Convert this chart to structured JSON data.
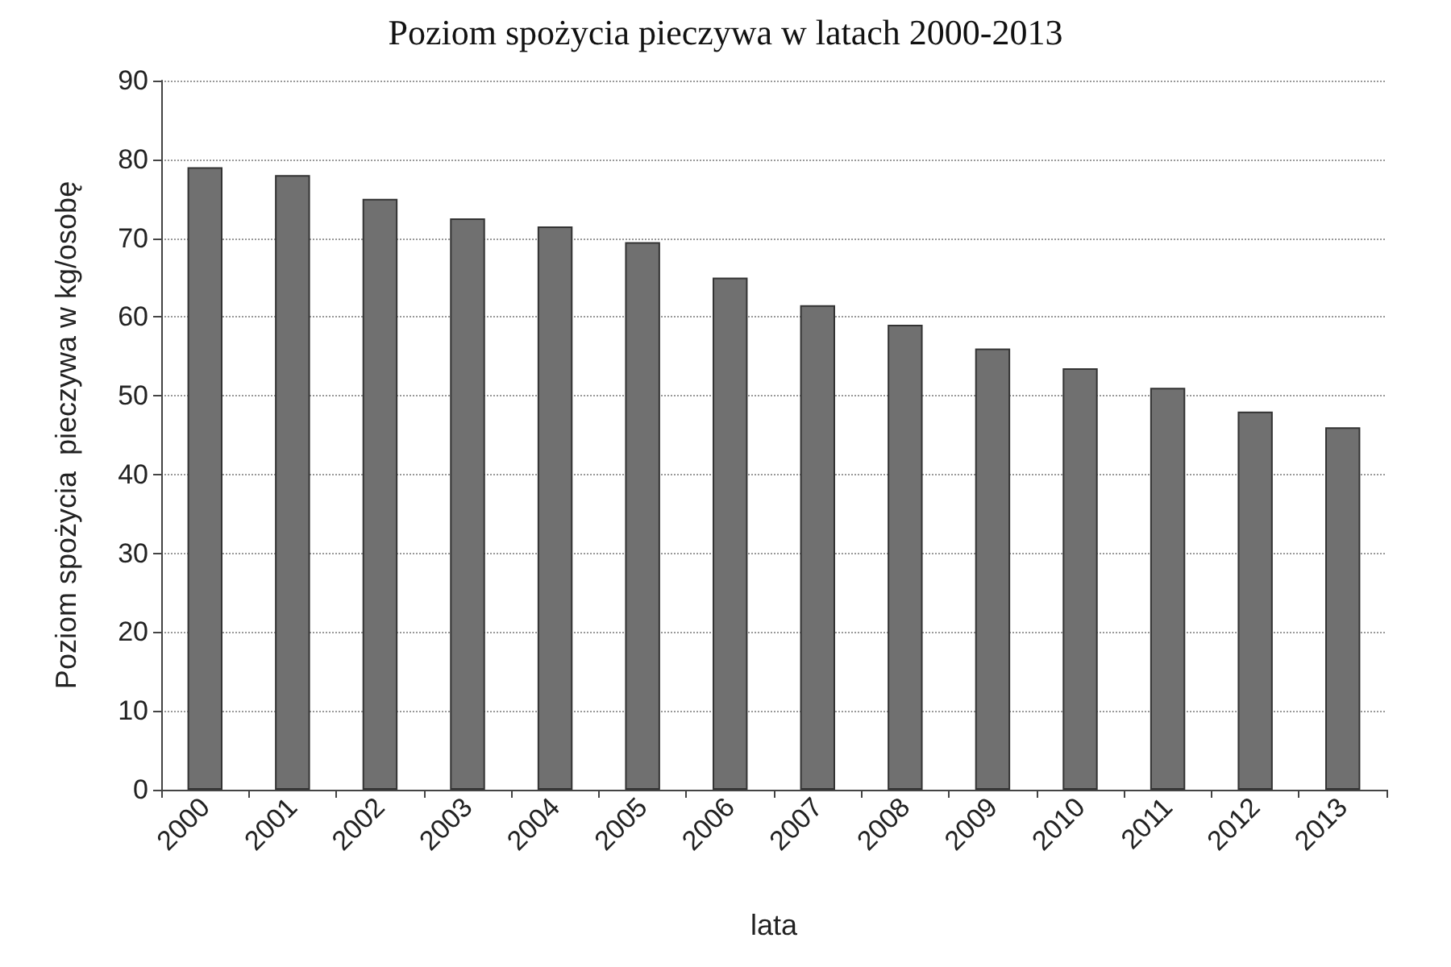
{
  "chart_data": {
    "type": "bar",
    "title": "Poziom spożycia pieczywa w latach 2000-2013",
    "xlabel": "lata",
    "ylabel": "Poziom spożycia  pieczywa w kg/osobę",
    "categories": [
      "2000",
      "2001",
      "2002",
      "2003",
      "2004",
      "2005",
      "2006",
      "2007",
      "2008",
      "2009",
      "2010",
      "2011",
      "2012",
      "2013"
    ],
    "values": [
      79,
      78,
      75,
      72.5,
      71.5,
      69.5,
      65,
      61.5,
      59,
      56,
      53.5,
      51,
      48,
      46
    ],
    "color": "#707070",
    "ylim": [
      0,
      90
    ],
    "yticks": [
      0,
      10,
      20,
      30,
      40,
      50,
      60,
      70,
      80,
      90
    ],
    "grid": "y"
  }
}
